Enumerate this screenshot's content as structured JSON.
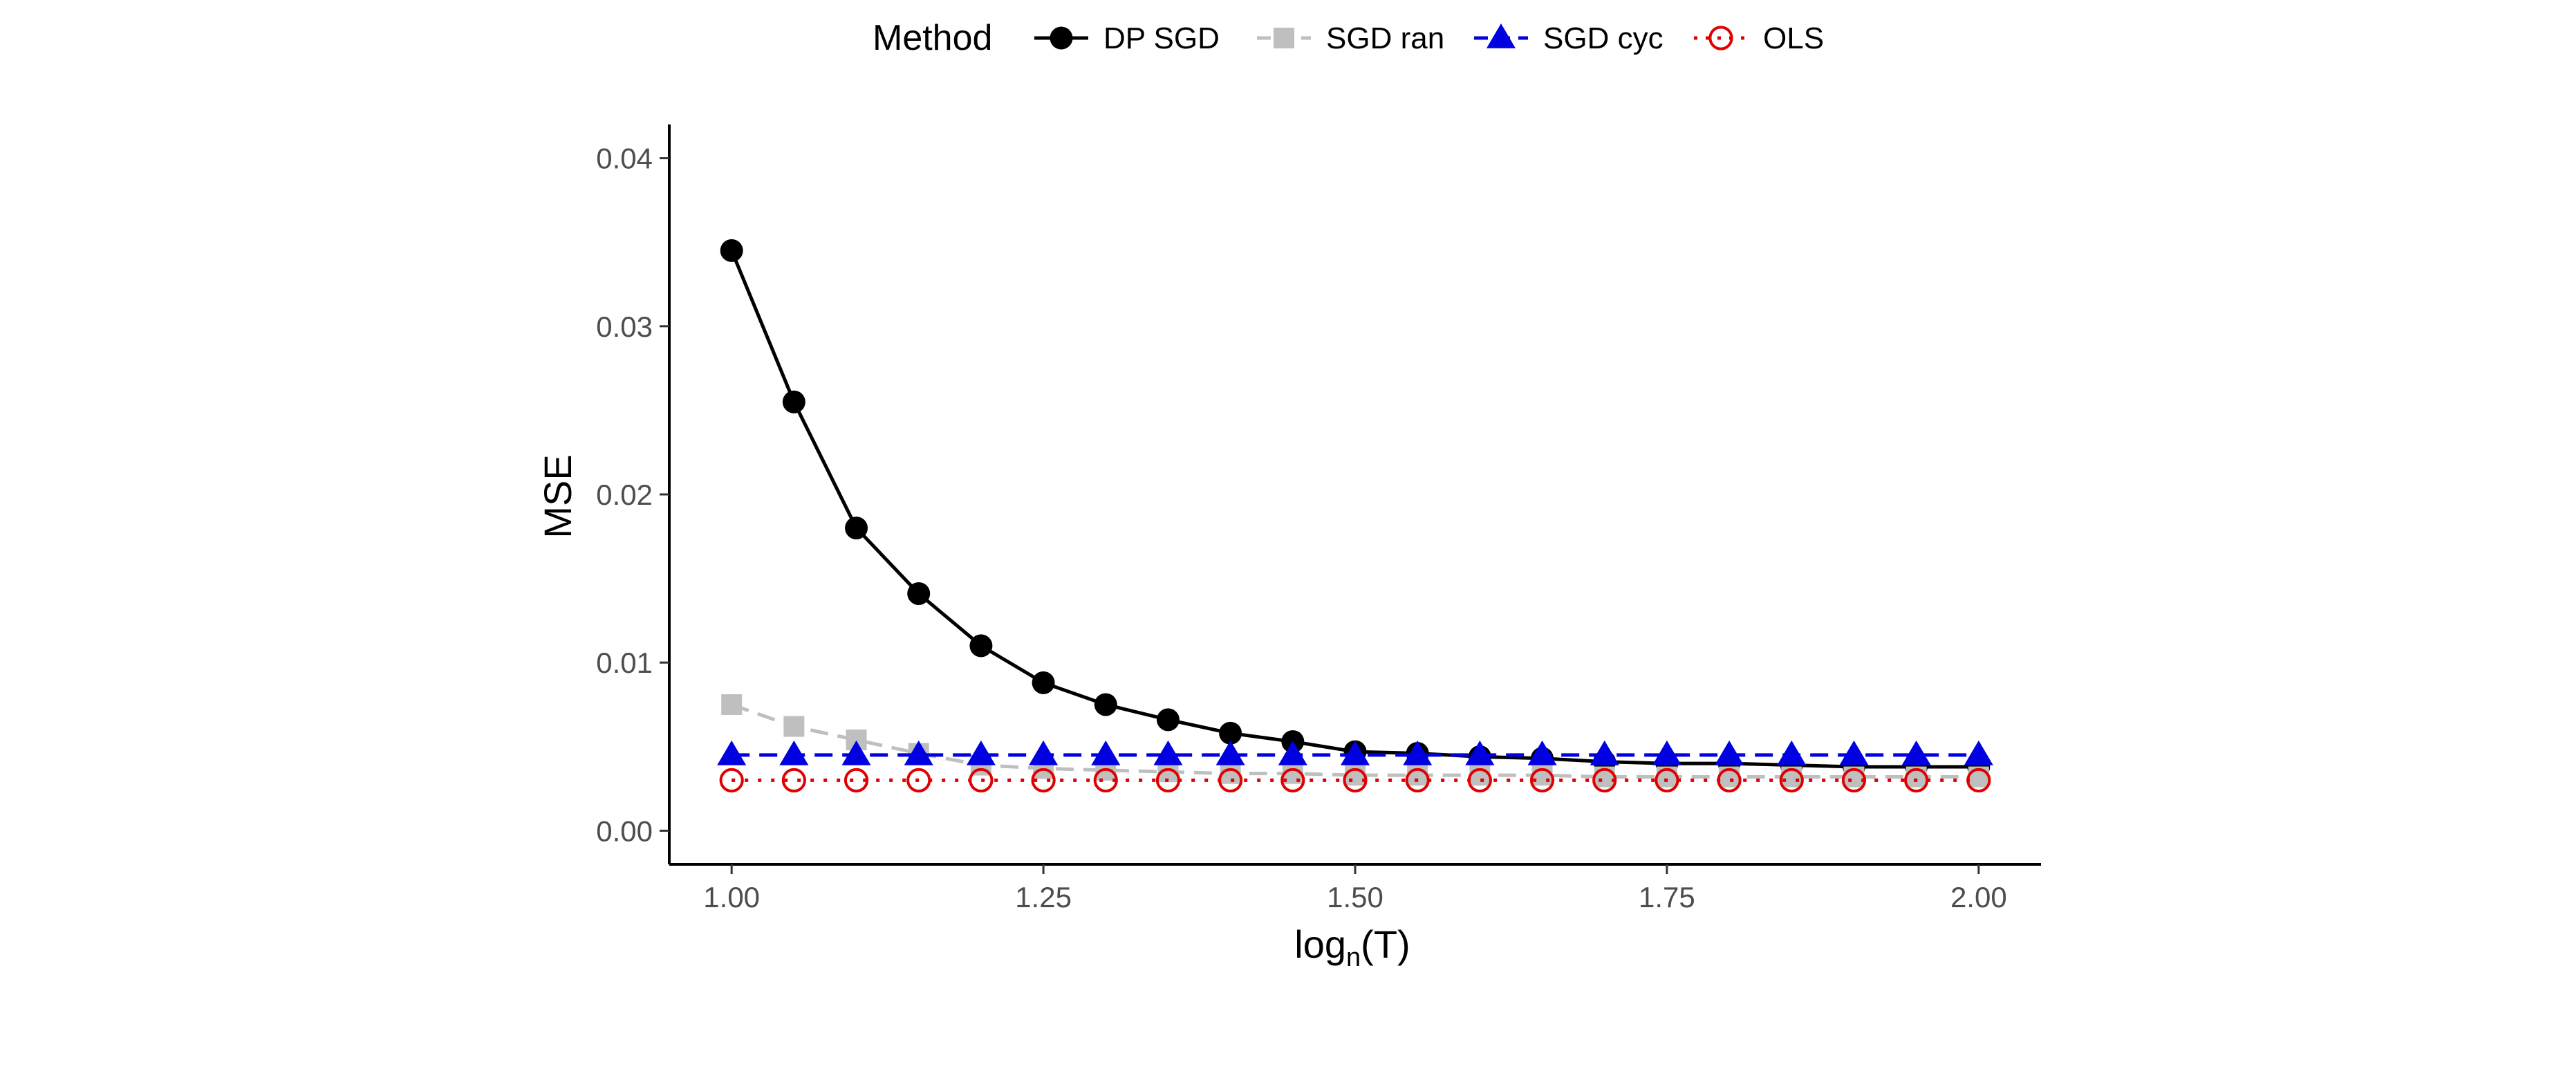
{
  "chart_data": {
    "type": "line",
    "xlabel": {
      "base": "log",
      "sub": "n",
      "tail": "(T)"
    },
    "ylabel": "MSE",
    "xlim": [
      0.95,
      2.05
    ],
    "ylim": [
      -0.002,
      0.042
    ],
    "x_ticks": [
      1.0,
      1.25,
      1.5,
      1.75,
      2.0
    ],
    "x_tick_labels": [
      "1.00",
      "1.25",
      "1.50",
      "1.75",
      "2.00"
    ],
    "y_ticks": [
      0.0,
      0.01,
      0.02,
      0.03,
      0.04
    ],
    "y_tick_labels": [
      "0.00",
      "0.01",
      "0.02",
      "0.03",
      "0.04"
    ],
    "grid": false,
    "legend": {
      "title": "Method",
      "position": "top"
    },
    "x": [
      1.0,
      1.05,
      1.1,
      1.15,
      1.2,
      1.25,
      1.3,
      1.35,
      1.4,
      1.45,
      1.5,
      1.55,
      1.6,
      1.65,
      1.7,
      1.75,
      1.8,
      1.85,
      1.9,
      1.95,
      2.0
    ],
    "series": [
      {
        "name": "DP SGD",
        "color": "#000000",
        "marker": "filled-circle",
        "line": "solid",
        "values": [
          0.0345,
          0.0255,
          0.018,
          0.0141,
          0.011,
          0.0088,
          0.0075,
          0.0066,
          0.0058,
          0.0053,
          0.0047,
          0.0046,
          0.0044,
          0.0043,
          0.0041,
          0.004,
          0.004,
          0.0039,
          0.0038,
          0.0038,
          0.0038
        ]
      },
      {
        "name": "SGD ran",
        "color": "#bfbfbf",
        "marker": "filled-square",
        "line": "dashed",
        "values": [
          0.0075,
          0.0062,
          0.0054,
          0.0046,
          0.0039,
          0.0037,
          0.0036,
          0.0035,
          0.0034,
          0.0034,
          0.0033,
          0.0033,
          0.0033,
          0.0033,
          0.0032,
          0.0032,
          0.0032,
          0.0032,
          0.0032,
          0.0032,
          0.0032
        ]
      },
      {
        "name": "SGD cyc",
        "color": "#0000e0",
        "marker": "filled-triangle",
        "line": "dashed",
        "values": [
          0.0045,
          0.0045,
          0.0045,
          0.0045,
          0.0045,
          0.0045,
          0.0045,
          0.0045,
          0.0045,
          0.0045,
          0.0045,
          0.0045,
          0.0045,
          0.0045,
          0.0045,
          0.0045,
          0.0045,
          0.0045,
          0.0045,
          0.0045,
          0.0045
        ]
      },
      {
        "name": "OLS",
        "color": "#e00000",
        "marker": "open-circle",
        "line": "dotted",
        "values": [
          0.003,
          0.003,
          0.003,
          0.003,
          0.003,
          0.003,
          0.003,
          0.003,
          0.003,
          0.003,
          0.003,
          0.003,
          0.003,
          0.003,
          0.003,
          0.003,
          0.003,
          0.003,
          0.003,
          0.003,
          0.003
        ]
      }
    ]
  }
}
